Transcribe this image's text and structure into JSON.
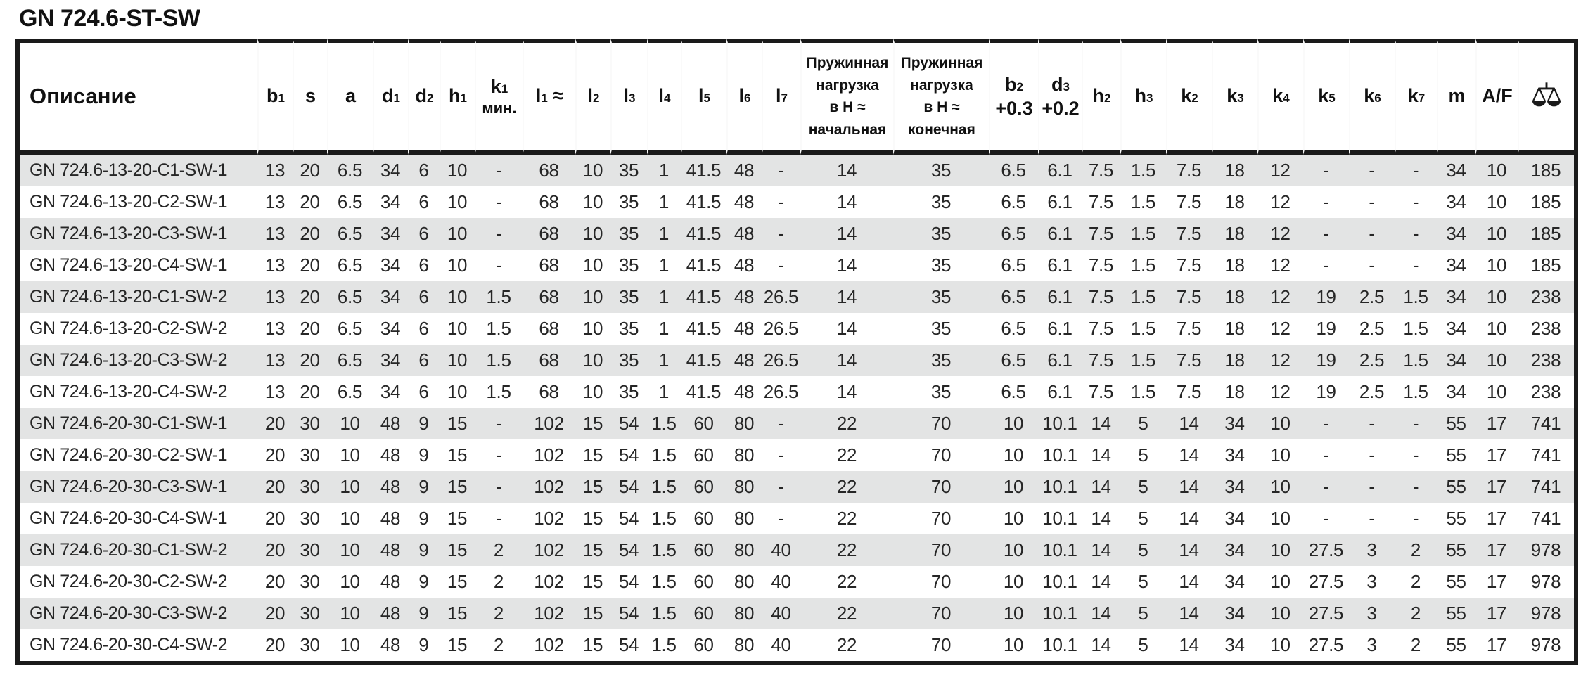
{
  "page_title": "GN 724.6-ST-SW",
  "colors": {
    "row_alt": "#e3e4e4",
    "border": "#1a1a1a",
    "text": "#262626"
  },
  "table": {
    "columns": [
      {
        "key": "description",
        "kind": "desc",
        "text": "Описание"
      },
      {
        "key": "b1",
        "kind": "subscript",
        "base": "b",
        "sub": "1"
      },
      {
        "key": "s",
        "kind": "plain",
        "text": "s"
      },
      {
        "key": "a",
        "kind": "plain",
        "text": "a"
      },
      {
        "key": "d1",
        "kind": "subscript",
        "base": "d",
        "sub": "1"
      },
      {
        "key": "d2",
        "kind": "subscript",
        "base": "d",
        "sub": "2"
      },
      {
        "key": "h1",
        "kind": "subscript",
        "base": "h",
        "sub": "1"
      },
      {
        "key": "k1-min",
        "kind": "subscript2",
        "base": "k",
        "sub": "1",
        "line2": "мин.",
        "line2_small": true
      },
      {
        "key": "l1",
        "kind": "subscript",
        "base": "l",
        "sub": "1",
        "suffix": " ≈"
      },
      {
        "key": "l2",
        "kind": "subscript",
        "base": "l",
        "sub": "2"
      },
      {
        "key": "l3",
        "kind": "subscript",
        "base": "l",
        "sub": "3"
      },
      {
        "key": "l4",
        "kind": "subscript",
        "base": "l",
        "sub": "4"
      },
      {
        "key": "l5",
        "kind": "subscript",
        "base": "l",
        "sub": "5"
      },
      {
        "key": "l6",
        "kind": "subscript",
        "base": "l",
        "sub": "6"
      },
      {
        "key": "l7",
        "kind": "subscript",
        "base": "l",
        "sub": "7"
      },
      {
        "key": "spring-load-initial",
        "kind": "multiline",
        "lines": [
          "Пружинная",
          "нагрузка",
          "в Н ≈",
          "начальная"
        ]
      },
      {
        "key": "spring-load-final",
        "kind": "multiline",
        "lines": [
          "Пружинная",
          "нагрузка",
          "в Н ≈",
          "конечная"
        ]
      },
      {
        "key": "b2",
        "kind": "subscript2",
        "base": "b",
        "sub": "2",
        "line2": "+0.3",
        "line2_small": false
      },
      {
        "key": "d3",
        "kind": "subscript2",
        "base": "d",
        "sub": "3",
        "line2": "+0.2",
        "line2_small": false
      },
      {
        "key": "h2",
        "kind": "subscript",
        "base": "h",
        "sub": "2"
      },
      {
        "key": "h3",
        "kind": "subscript",
        "base": "h",
        "sub": "3"
      },
      {
        "key": "k2",
        "kind": "subscript",
        "base": "k",
        "sub": "2"
      },
      {
        "key": "k3",
        "kind": "subscript",
        "base": "k",
        "sub": "3"
      },
      {
        "key": "k4",
        "kind": "subscript",
        "base": "k",
        "sub": "4"
      },
      {
        "key": "k5",
        "kind": "subscript",
        "base": "k",
        "sub": "5"
      },
      {
        "key": "k6",
        "kind": "subscript",
        "base": "k",
        "sub": "6"
      },
      {
        "key": "k7",
        "kind": "subscript",
        "base": "k",
        "sub": "7"
      },
      {
        "key": "m",
        "kind": "plain",
        "text": "m"
      },
      {
        "key": "a-f",
        "kind": "plain",
        "text": "A/F"
      },
      {
        "key": "weight",
        "kind": "icon",
        "icon": "scales-icon"
      }
    ],
    "rows": [
      [
        "GN 724.6-13-20-C1-SW-1",
        "13",
        "20",
        "6.5",
        "34",
        "6",
        "10",
        "-",
        "68",
        "10",
        "35",
        "1",
        "41.5",
        "48",
        "-",
        "14",
        "35",
        "6.5",
        "6.1",
        "7.5",
        "1.5",
        "7.5",
        "18",
        "12",
        "-",
        "-",
        "-",
        "34",
        "10",
        "185"
      ],
      [
        "GN 724.6-13-20-C2-SW-1",
        "13",
        "20",
        "6.5",
        "34",
        "6",
        "10",
        "-",
        "68",
        "10",
        "35",
        "1",
        "41.5",
        "48",
        "-",
        "14",
        "35",
        "6.5",
        "6.1",
        "7.5",
        "1.5",
        "7.5",
        "18",
        "12",
        "-",
        "-",
        "-",
        "34",
        "10",
        "185"
      ],
      [
        "GN 724.6-13-20-C3-SW-1",
        "13",
        "20",
        "6.5",
        "34",
        "6",
        "10",
        "-",
        "68",
        "10",
        "35",
        "1",
        "41.5",
        "48",
        "-",
        "14",
        "35",
        "6.5",
        "6.1",
        "7.5",
        "1.5",
        "7.5",
        "18",
        "12",
        "-",
        "-",
        "-",
        "34",
        "10",
        "185"
      ],
      [
        "GN 724.6-13-20-C4-SW-1",
        "13",
        "20",
        "6.5",
        "34",
        "6",
        "10",
        "-",
        "68",
        "10",
        "35",
        "1",
        "41.5",
        "48",
        "-",
        "14",
        "35",
        "6.5",
        "6.1",
        "7.5",
        "1.5",
        "7.5",
        "18",
        "12",
        "-",
        "-",
        "-",
        "34",
        "10",
        "185"
      ],
      [
        "GN 724.6-13-20-C1-SW-2",
        "13",
        "20",
        "6.5",
        "34",
        "6",
        "10",
        "1.5",
        "68",
        "10",
        "35",
        "1",
        "41.5",
        "48",
        "26.5",
        "14",
        "35",
        "6.5",
        "6.1",
        "7.5",
        "1.5",
        "7.5",
        "18",
        "12",
        "19",
        "2.5",
        "1.5",
        "34",
        "10",
        "238"
      ],
      [
        "GN 724.6-13-20-C2-SW-2",
        "13",
        "20",
        "6.5",
        "34",
        "6",
        "10",
        "1.5",
        "68",
        "10",
        "35",
        "1",
        "41.5",
        "48",
        "26.5",
        "14",
        "35",
        "6.5",
        "6.1",
        "7.5",
        "1.5",
        "7.5",
        "18",
        "12",
        "19",
        "2.5",
        "1.5",
        "34",
        "10",
        "238"
      ],
      [
        "GN 724.6-13-20-C3-SW-2",
        "13",
        "20",
        "6.5",
        "34",
        "6",
        "10",
        "1.5",
        "68",
        "10",
        "35",
        "1",
        "41.5",
        "48",
        "26.5",
        "14",
        "35",
        "6.5",
        "6.1",
        "7.5",
        "1.5",
        "7.5",
        "18",
        "12",
        "19",
        "2.5",
        "1.5",
        "34",
        "10",
        "238"
      ],
      [
        "GN 724.6-13-20-C4-SW-2",
        "13",
        "20",
        "6.5",
        "34",
        "6",
        "10",
        "1.5",
        "68",
        "10",
        "35",
        "1",
        "41.5",
        "48",
        "26.5",
        "14",
        "35",
        "6.5",
        "6.1",
        "7.5",
        "1.5",
        "7.5",
        "18",
        "12",
        "19",
        "2.5",
        "1.5",
        "34",
        "10",
        "238"
      ],
      [
        "GN 724.6-20-30-C1-SW-1",
        "20",
        "30",
        "10",
        "48",
        "9",
        "15",
        "-",
        "102",
        "15",
        "54",
        "1.5",
        "60",
        "80",
        "-",
        "22",
        "70",
        "10",
        "10.1",
        "14",
        "5",
        "14",
        "34",
        "10",
        "-",
        "-",
        "-",
        "55",
        "17",
        "741"
      ],
      [
        "GN 724.6-20-30-C2-SW-1",
        "20",
        "30",
        "10",
        "48",
        "9",
        "15",
        "-",
        "102",
        "15",
        "54",
        "1.5",
        "60",
        "80",
        "-",
        "22",
        "70",
        "10",
        "10.1",
        "14",
        "5",
        "14",
        "34",
        "10",
        "-",
        "-",
        "-",
        "55",
        "17",
        "741"
      ],
      [
        "GN 724.6-20-30-C3-SW-1",
        "20",
        "30",
        "10",
        "48",
        "9",
        "15",
        "-",
        "102",
        "15",
        "54",
        "1.5",
        "60",
        "80",
        "-",
        "22",
        "70",
        "10",
        "10.1",
        "14",
        "5",
        "14",
        "34",
        "10",
        "-",
        "-",
        "-",
        "55",
        "17",
        "741"
      ],
      [
        "GN 724.6-20-30-C4-SW-1",
        "20",
        "30",
        "10",
        "48",
        "9",
        "15",
        "-",
        "102",
        "15",
        "54",
        "1.5",
        "60",
        "80",
        "-",
        "22",
        "70",
        "10",
        "10.1",
        "14",
        "5",
        "14",
        "34",
        "10",
        "-",
        "-",
        "-",
        "55",
        "17",
        "741"
      ],
      [
        "GN 724.6-20-30-C1-SW-2",
        "20",
        "30",
        "10",
        "48",
        "9",
        "15",
        "2",
        "102",
        "15",
        "54",
        "1.5",
        "60",
        "80",
        "40",
        "22",
        "70",
        "10",
        "10.1",
        "14",
        "5",
        "14",
        "34",
        "10",
        "27.5",
        "3",
        "2",
        "55",
        "17",
        "978"
      ],
      [
        "GN 724.6-20-30-C2-SW-2",
        "20",
        "30",
        "10",
        "48",
        "9",
        "15",
        "2",
        "102",
        "15",
        "54",
        "1.5",
        "60",
        "80",
        "40",
        "22",
        "70",
        "10",
        "10.1",
        "14",
        "5",
        "14",
        "34",
        "10",
        "27.5",
        "3",
        "2",
        "55",
        "17",
        "978"
      ],
      [
        "GN 724.6-20-30-C3-SW-2",
        "20",
        "30",
        "10",
        "48",
        "9",
        "15",
        "2",
        "102",
        "15",
        "54",
        "1.5",
        "60",
        "80",
        "40",
        "22",
        "70",
        "10",
        "10.1",
        "14",
        "5",
        "14",
        "34",
        "10",
        "27.5",
        "3",
        "2",
        "55",
        "17",
        "978"
      ],
      [
        "GN 724.6-20-30-C4-SW-2",
        "20",
        "30",
        "10",
        "48",
        "9",
        "15",
        "2",
        "102",
        "15",
        "54",
        "1.5",
        "60",
        "80",
        "40",
        "22",
        "70",
        "10",
        "10.1",
        "14",
        "5",
        "14",
        "34",
        "10",
        "27.5",
        "3",
        "2",
        "55",
        "17",
        "978"
      ]
    ]
  }
}
